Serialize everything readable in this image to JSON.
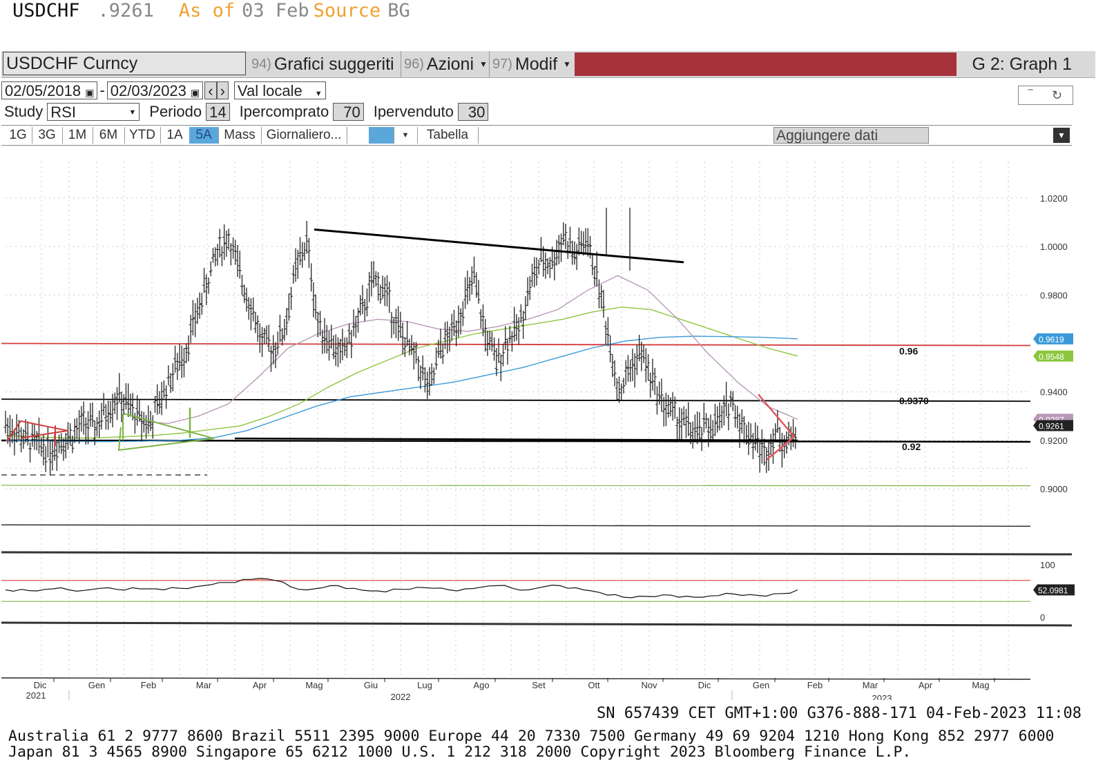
{
  "header": {
    "symbol": "USDCHF",
    "price": ".9261",
    "as_of_label": "As of",
    "as_of_date": "03 Feb",
    "source_label": "Source",
    "source_value": "BG"
  },
  "toolbar": {
    "ticker": "USDCHF Curncy",
    "menu1_num": "94)",
    "menu1": "Grafici suggeriti",
    "menu2_num": "96)",
    "menu2": "Azioni",
    "menu3_num": "97)",
    "menu3": "Modif",
    "graph_label": "G 2: Graph 1"
  },
  "controls": {
    "start_date": "02/05/2018",
    "end_date": "02/03/2023",
    "currency": "Val locale",
    "study_label": "Study",
    "study": "RSI",
    "period_label": "Periodo",
    "period": "14",
    "overbought_label": "Ipercomprato",
    "overbought": "70",
    "oversold_label": "Ipervenduto",
    "oversold": "30"
  },
  "tabs": [
    "1G",
    "3G",
    "1M",
    "6M",
    "YTD",
    "1A",
    "5A",
    "Mass",
    "Giornaliero...",
    "",
    "",
    "Tabella"
  ],
  "active_tab": "5A",
  "add_data": "Aggiungere dati",
  "colors": {
    "resistance": "#d33a3a",
    "ma_green": "#8cc63e",
    "ma_blue": "#3a9ad9",
    "ma_purple": "#b89ab8",
    "toolbar_red": "#a6323c"
  },
  "chart_data": {
    "type": "bar",
    "price_axis": {
      "ticks": [
        "1.0200",
        "1.0000",
        "0.9800",
        "0.9400",
        "0.9200",
        "0.9000"
      ],
      "ylim": [
        0.8955,
        1.0265
      ]
    },
    "rsi_axis": {
      "ticks": [
        "100",
        "0"
      ],
      "ylim": [
        0,
        100
      ]
    },
    "x_months": [
      "Dic",
      "Gen",
      "Feb",
      "Mar",
      "Apr",
      "Mag",
      "Giu",
      "Lug",
      "Ago",
      "Set",
      "Ott",
      "Nov",
      "Dic",
      "Gen",
      "Feb",
      "Mar",
      "Apr",
      "Mag"
    ],
    "x_years": [
      "2021",
      "2022",
      "2023"
    ],
    "levels": [
      {
        "value": 0.96,
        "label": "0.96",
        "color": "#d33a3a"
      },
      {
        "value": 0.937,
        "label": "0.9370",
        "color": "#000000"
      },
      {
        "value": 0.92,
        "label": "0.92",
        "color": "#000000"
      }
    ],
    "price_tags": [
      {
        "value": 0.9619,
        "label": "0.9619",
        "color": "#3a9ad9"
      },
      {
        "value": 0.9548,
        "label": "0.9548",
        "color": "#8cc63e"
      },
      {
        "value": 0.9287,
        "label": "0.9287",
        "color": "#b89ab8"
      },
      {
        "value": 0.9261,
        "label": "0.9261",
        "color": "#222222"
      }
    ],
    "rsi_tag": "52.0981",
    "closes": [
      0.9265,
      0.9235,
      0.9195,
      0.918,
      0.916,
      0.92,
      0.922,
      0.927,
      0.925,
      0.932,
      0.938,
      0.934,
      0.929,
      0.927,
      0.938,
      0.948,
      0.956,
      0.97,
      0.984,
      0.998,
      1.004,
      0.988,
      0.976,
      0.96,
      0.958,
      0.966,
      0.99,
      1.002,
      0.968,
      0.962,
      0.955,
      0.963,
      0.974,
      0.986,
      0.982,
      0.968,
      0.959,
      0.952,
      0.94,
      0.958,
      0.964,
      0.976,
      0.986,
      0.964,
      0.952,
      0.962,
      0.966,
      0.984,
      0.994,
      0.993,
      1.005,
      0.996,
      1.003,
      0.988,
      0.964,
      0.94,
      0.95,
      0.956,
      0.944,
      0.935,
      0.93,
      0.926,
      0.922,
      0.926,
      0.927,
      0.937,
      0.926,
      0.921,
      0.914,
      0.924,
      0.918,
      0.9261
    ],
    "ma_green": [
      0.922,
      0.9215,
      0.921,
      0.921,
      0.9215,
      0.922,
      0.923,
      0.9245,
      0.926,
      0.93,
      0.935,
      0.942,
      0.948,
      0.953,
      0.958,
      0.961,
      0.964,
      0.966,
      0.968,
      0.97,
      0.973,
      0.975,
      0.974,
      0.97,
      0.966,
      0.962,
      0.958,
      0.9548
    ],
    "ma_blue": [
      0.92,
      0.9198,
      0.9196,
      0.9195,
      0.9197,
      0.92,
      0.921,
      0.924,
      0.929,
      0.934,
      0.938,
      0.94,
      0.942,
      0.944,
      0.947,
      0.95,
      0.954,
      0.958,
      0.961,
      0.9625,
      0.963,
      0.9628,
      0.9625,
      0.9619
    ],
    "ma_purple": [
      0.928,
      0.927,
      0.93,
      0.935,
      0.946,
      0.958,
      0.964,
      0.968,
      0.97,
      0.969,
      0.966,
      0.965,
      0.967,
      0.97,
      0.974,
      0.982,
      0.988,
      0.982,
      0.97,
      0.956,
      0.944,
      0.934,
      0.9287
    ],
    "rsi": [
      52,
      53,
      50,
      54,
      52,
      51,
      55,
      53,
      56,
      54,
      52,
      55,
      58,
      62,
      66,
      72,
      74,
      70,
      58,
      52,
      56,
      60,
      55,
      50,
      48,
      53,
      57,
      55,
      52,
      54,
      57,
      60,
      55,
      52,
      58,
      60,
      56,
      50,
      42,
      38,
      40,
      39,
      42,
      40,
      38,
      41,
      44,
      43,
      40,
      45,
      52
    ]
  }
}
